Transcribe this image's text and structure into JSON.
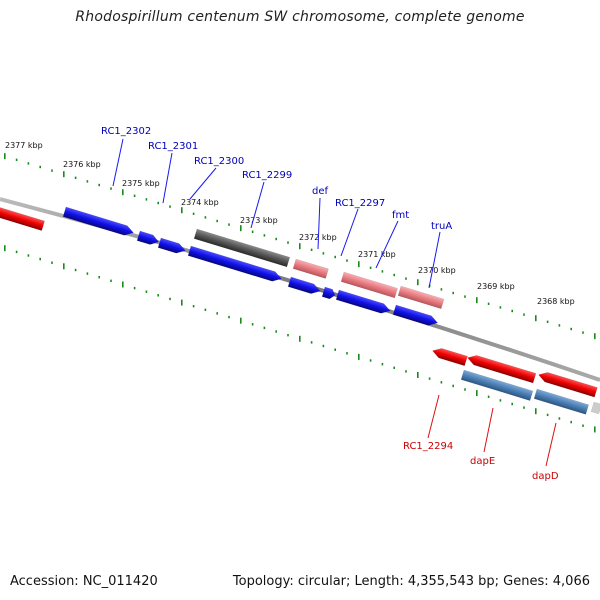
{
  "title": "Rhodospirillum centenum SW chromosome, complete genome",
  "footer": {
    "accession": "Accession: NC_011420",
    "summary": "Topology: circular; Length: 4,355,543 bp; Genes: 4,066"
  },
  "colors": {
    "forward_gene": "#1010e8",
    "forward_gene_light": "#e87a80",
    "forward_gene_gray": "#555555",
    "reverse_gene": "#ee0000",
    "reverse_gene_steel": "#4a7fb5",
    "label_forward": "#0000bb",
    "label_reverse": "#cc0000",
    "ticks": "#1a8a1a",
    "backbone": "#888888"
  },
  "scale": {
    "ticks": [
      {
        "label": "2377 kbp"
      },
      {
        "label": "2376 kbp"
      },
      {
        "label": "2375 kbp"
      },
      {
        "label": "2374 kbp"
      },
      {
        "label": "2373 kbp"
      },
      {
        "label": "2372 kbp"
      },
      {
        "label": "2371 kbp"
      },
      {
        "label": "2370 kbp"
      },
      {
        "label": "2369 kbp"
      },
      {
        "label": "2368 kbp"
      }
    ]
  },
  "genes": {
    "forward": [
      {
        "label": "RC1_2302"
      },
      {
        "label": "RC1_2301"
      },
      {
        "label": "RC1_2300"
      },
      {
        "label": "RC1_2299"
      },
      {
        "label": "def"
      },
      {
        "label": "RC1_2297"
      },
      {
        "label": "fmt"
      },
      {
        "label": "truA"
      }
    ],
    "reverse": [
      {
        "label": "RC1_2294"
      },
      {
        "label": "dapE"
      },
      {
        "label": "dapD"
      }
    ]
  }
}
